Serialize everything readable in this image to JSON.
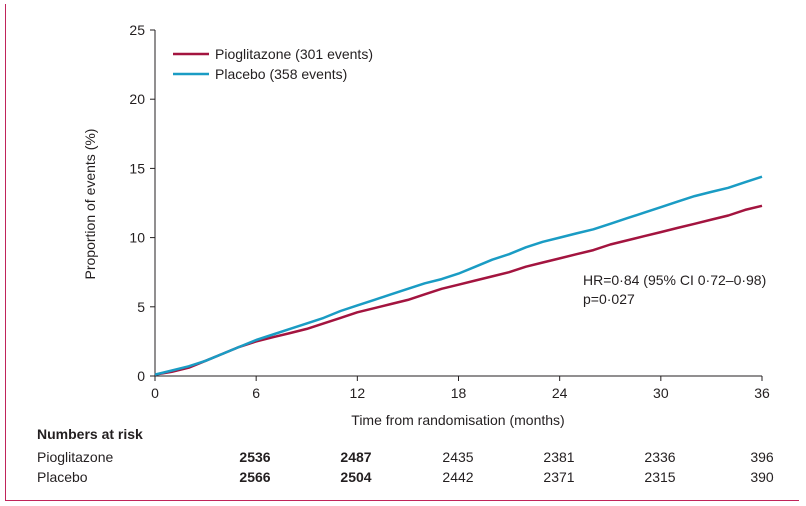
{
  "chart_data": {
    "type": "line",
    "title": "",
    "xlabel": "Time from randomisation (months)",
    "ylabel": "Proportion of events (%)",
    "xlim": [
      0,
      36
    ],
    "ylim": [
      0,
      25
    ],
    "xticks": [
      0,
      6,
      12,
      18,
      24,
      30,
      36
    ],
    "yticks": [
      0,
      5,
      10,
      15,
      20,
      25
    ],
    "grid": false,
    "legend_position": "top-left",
    "series": [
      {
        "name": "Pioglitazone (301 events)",
        "color": "#a3143f",
        "x": [
          0,
          1,
          2,
          3,
          4,
          5,
          6,
          7,
          8,
          9,
          10,
          11,
          12,
          13,
          14,
          15,
          16,
          17,
          18,
          19,
          20,
          21,
          22,
          23,
          24,
          25,
          26,
          27,
          28,
          29,
          30,
          31,
          32,
          33,
          34,
          35,
          36
        ],
        "y": [
          0.1,
          0.3,
          0.6,
          1.1,
          1.6,
          2.1,
          2.5,
          2.8,
          3.1,
          3.4,
          3.8,
          4.2,
          4.6,
          4.9,
          5.2,
          5.5,
          5.9,
          6.3,
          6.6,
          6.9,
          7.2,
          7.5,
          7.9,
          8.2,
          8.5,
          8.8,
          9.1,
          9.5,
          9.8,
          10.1,
          10.4,
          10.7,
          11.0,
          11.3,
          11.6,
          12.0,
          12.3
        ]
      },
      {
        "name": "Placebo (358 events)",
        "color": "#1a9cc4",
        "x": [
          0,
          1,
          2,
          3,
          4,
          5,
          6,
          7,
          8,
          9,
          10,
          11,
          12,
          13,
          14,
          15,
          16,
          17,
          18,
          19,
          20,
          21,
          22,
          23,
          24,
          25,
          26,
          27,
          28,
          29,
          30,
          31,
          32,
          33,
          34,
          35,
          36
        ],
        "y": [
          0.1,
          0.4,
          0.7,
          1.1,
          1.6,
          2.1,
          2.6,
          3.0,
          3.4,
          3.8,
          4.2,
          4.7,
          5.1,
          5.5,
          5.9,
          6.3,
          6.7,
          7.0,
          7.4,
          7.9,
          8.4,
          8.8,
          9.3,
          9.7,
          10.0,
          10.3,
          10.6,
          11.0,
          11.4,
          11.8,
          12.2,
          12.6,
          13.0,
          13.3,
          13.6,
          14.0,
          14.4
        ]
      }
    ],
    "annotation": {
      "line1": "HR=0·84 (95% CI 0·72–0·98)",
      "line2": "p=0·027"
    },
    "numbers_at_risk": {
      "title": "Numbers at risk",
      "rows": [
        {
          "label": "Pioglitazone",
          "values": [
            "2536",
            "2487",
            "2435",
            "2381",
            "2336",
            "396"
          ]
        },
        {
          "label": "Placebo",
          "values": [
            "2566",
            "2504",
            "2442",
            "2371",
            "2315",
            "390"
          ]
        }
      ]
    }
  }
}
